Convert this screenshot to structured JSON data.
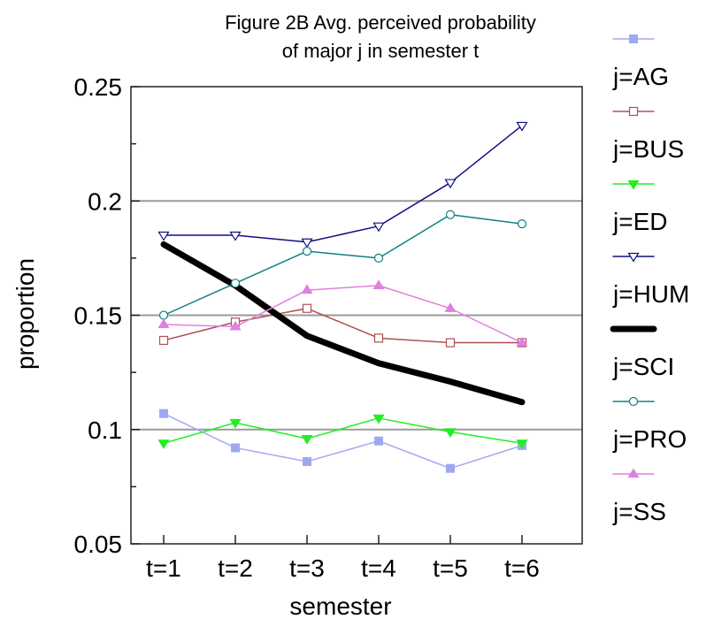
{
  "chart_data": {
    "type": "line",
    "title_line1": "Figure 2B  Avg. perceived probability",
    "title_line2": "of major j in semester t",
    "xlabel": "semester",
    "ylabel": "proportion",
    "categories": [
      "t=1",
      "t=2",
      "t=3",
      "t=4",
      "t=5",
      "t=6"
    ],
    "ylim": [
      0.05,
      0.25
    ],
    "yticks": [
      0.05,
      0.1,
      0.15,
      0.2,
      0.25
    ],
    "ytick_labels": [
      "0.05",
      "0.1",
      "0.15",
      "0.2",
      "0.25"
    ],
    "gridlines": [
      0.1,
      0.15,
      0.2
    ],
    "legend_position": "right",
    "series": [
      {
        "name": "j=AG",
        "color": "#a0a8f0",
        "marker": "square-filled",
        "width": 1.5,
        "values": [
          0.107,
          0.092,
          0.086,
          0.095,
          0.083,
          0.093
        ]
      },
      {
        "name": "j=BUS",
        "color": "#b05050",
        "marker": "square-open",
        "width": 1.5,
        "values": [
          0.139,
          0.147,
          0.153,
          0.14,
          0.138,
          0.138
        ]
      },
      {
        "name": "j=ED",
        "color": "#22ee22",
        "marker": "tri-down-filled",
        "width": 1.5,
        "values": [
          0.094,
          0.103,
          0.096,
          0.105,
          0.099,
          0.094
        ]
      },
      {
        "name": "j=HUM",
        "color": "#101080",
        "marker": "tri-down-open",
        "width": 1.5,
        "values": [
          0.185,
          0.185,
          0.182,
          0.189,
          0.208,
          0.233
        ]
      },
      {
        "name": "j=SCI",
        "color": "#000000",
        "marker": "none",
        "width": 7,
        "values": [
          0.181,
          0.163,
          0.141,
          0.129,
          0.121,
          0.112
        ]
      },
      {
        "name": "j=PRO",
        "color": "#108080",
        "marker": "circle-open",
        "width": 1.5,
        "values": [
          0.15,
          0.164,
          0.178,
          0.175,
          0.194,
          0.19
        ]
      },
      {
        "name": "j=SS",
        "color": "#e080e0",
        "marker": "tri-up-filled",
        "width": 1.5,
        "values": [
          0.146,
          0.145,
          0.161,
          0.163,
          0.153,
          0.138
        ]
      }
    ]
  }
}
